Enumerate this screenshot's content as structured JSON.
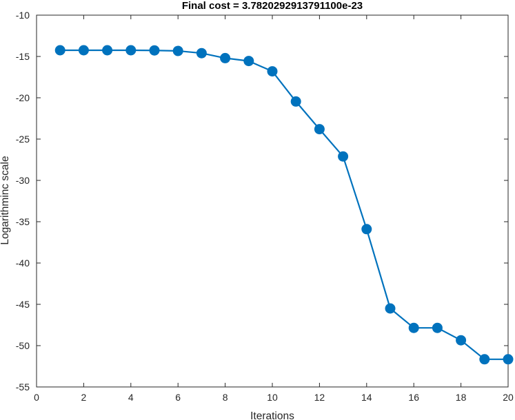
{
  "chart_data": {
    "type": "line",
    "title": "Final cost = 3.7820292913791100e-23",
    "xlabel": "Iterations",
    "ylabel": "Logarithminc scale",
    "xlim": [
      0,
      20
    ],
    "ylim": [
      -55,
      -10
    ],
    "xticks": [
      0,
      2,
      4,
      6,
      8,
      10,
      12,
      14,
      16,
      18,
      20
    ],
    "yticks": [
      -10,
      -15,
      -20,
      -25,
      -30,
      -35,
      -40,
      -45,
      -50,
      -55
    ],
    "grid": false,
    "legend": false,
    "colors": {
      "series": "#0072bd",
      "axis": "#262626"
    },
    "series": [
      {
        "x": [
          1,
          2,
          3,
          4,
          5,
          6,
          7,
          8,
          9,
          10,
          11,
          12,
          13,
          14,
          15,
          16,
          17,
          18,
          19,
          20
        ],
        "values": [
          -14.25,
          -14.25,
          -14.25,
          -14.25,
          -14.27,
          -14.33,
          -14.6,
          -15.2,
          -15.55,
          -16.8,
          -20.45,
          -23.8,
          -27.1,
          -35.9,
          -45.5,
          -47.85,
          -47.85,
          -49.35,
          -51.65,
          -51.65
        ]
      }
    ]
  }
}
